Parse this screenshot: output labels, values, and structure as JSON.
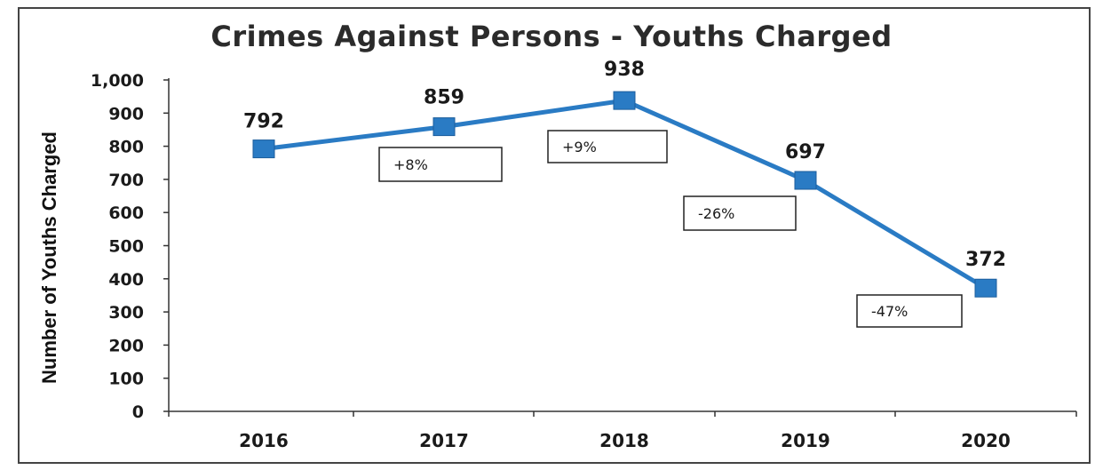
{
  "chart_data": {
    "type": "line",
    "title": "Crimes Against Persons - Youths Charged",
    "xlabel": "",
    "ylabel": "Number of Youths Charged",
    "categories": [
      "2016",
      "2017",
      "2018",
      "2019",
      "2020"
    ],
    "series": [
      {
        "values": [
          792,
          859,
          938,
          697,
          372
        ],
        "color": "#2a7bc4"
      }
    ],
    "data_labels": [
      "792",
      "859",
      "938",
      "697",
      "372"
    ],
    "annotations": [
      {
        "between": [
          "2016",
          "2017"
        ],
        "text": "+8%"
      },
      {
        "between": [
          "2017",
          "2018"
        ],
        "text": "+9%"
      },
      {
        "between": [
          "2018",
          "2019"
        ],
        "text": "-26%"
      },
      {
        "between": [
          "2019",
          "2020"
        ],
        "text": "-47%"
      }
    ],
    "y_ticks": [
      "0",
      "100",
      "200",
      "300",
      "400",
      "500",
      "600",
      "700",
      "800",
      "900",
      "1,000"
    ],
    "ylim": [
      0,
      1000
    ],
    "grid": false,
    "legend": "none"
  }
}
